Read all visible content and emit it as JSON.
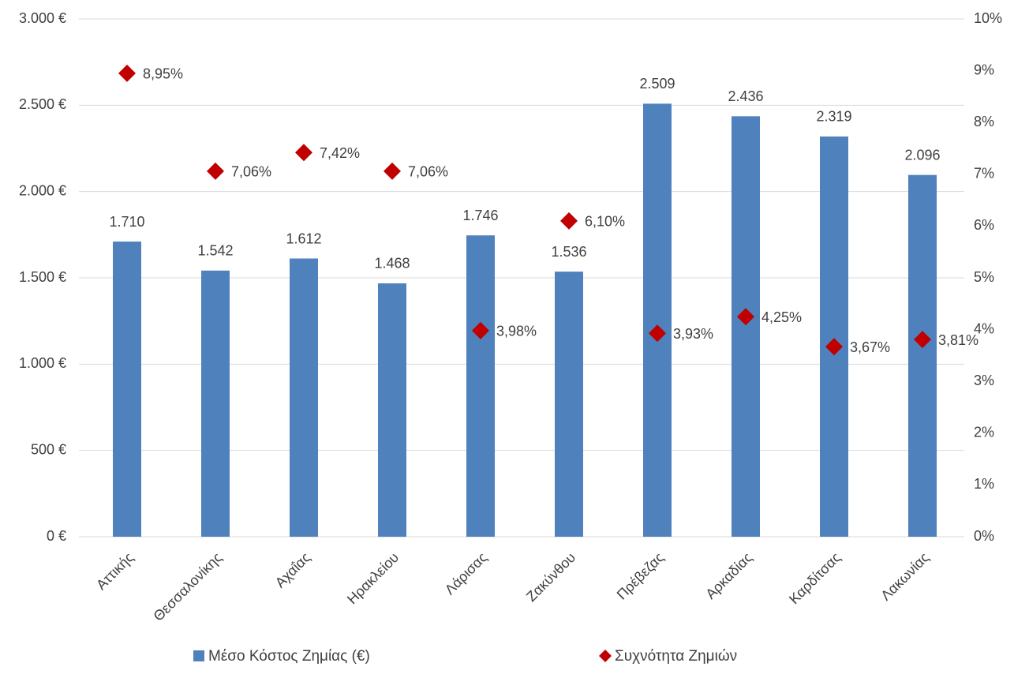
{
  "chart_data": {
    "type": "bar",
    "categories": [
      "Αττικής",
      "Θεσσαλονίκης",
      "Αχαΐας",
      "Ηρακλείου",
      "Λάρισας",
      "Ζακύνθου",
      "Πρέβεζας",
      "Αρκαδίας",
      "Καρδίτσας",
      "Λακωνίας"
    ],
    "series": [
      {
        "name": "Μέσο Κόστος Ζημίας (€)",
        "type": "bar",
        "color": "#4f81bd",
        "values": [
          1710,
          1542,
          1612,
          1468,
          1746,
          1536,
          2509,
          2436,
          2319,
          2096
        ],
        "value_labels": [
          "1.710",
          "1.542",
          "1.612",
          "1.468",
          "1.746",
          "1.536",
          "2.509",
          "2.436",
          "2.319",
          "2.096"
        ]
      },
      {
        "name": "Συχνότητα Ζημιών",
        "type": "scatter",
        "axis": "y2",
        "color": "#c00000",
        "values": [
          8.95,
          7.06,
          7.42,
          7.06,
          3.98,
          6.1,
          3.93,
          4.25,
          3.67,
          3.81
        ],
        "value_labels": [
          "8,95%",
          "7,06%",
          "7,42%",
          "7,06%",
          "3,98%",
          "6,10%",
          "3,93%",
          "4,25%",
          "3,67%",
          "3,81%"
        ]
      }
    ],
    "ylim": [
      0,
      3000
    ],
    "yticks": [
      {
        "value": 0,
        "label": "0 €"
      },
      {
        "value": 500,
        "label": "500 €"
      },
      {
        "value": 1000,
        "label": "1.000 €"
      },
      {
        "value": 1500,
        "label": "1.500 €"
      },
      {
        "value": 2000,
        "label": "2.000 €"
      },
      {
        "value": 2500,
        "label": "2.500 €"
      },
      {
        "value": 3000,
        "label": "3.000 €"
      }
    ],
    "y2lim": [
      0,
      10
    ],
    "y2ticks": [
      {
        "value": 0,
        "label": "0%"
      },
      {
        "value": 1,
        "label": "1%"
      },
      {
        "value": 2,
        "label": "2%"
      },
      {
        "value": 3,
        "label": "3%"
      },
      {
        "value": 4,
        "label": "4%"
      },
      {
        "value": 5,
        "label": "5%"
      },
      {
        "value": 6,
        "label": "6%"
      },
      {
        "value": 7,
        "label": "7%"
      },
      {
        "value": 8,
        "label": "8%"
      },
      {
        "value": 9,
        "label": "9%"
      },
      {
        "value": 10,
        "label": "10%"
      }
    ],
    "grid": true
  }
}
